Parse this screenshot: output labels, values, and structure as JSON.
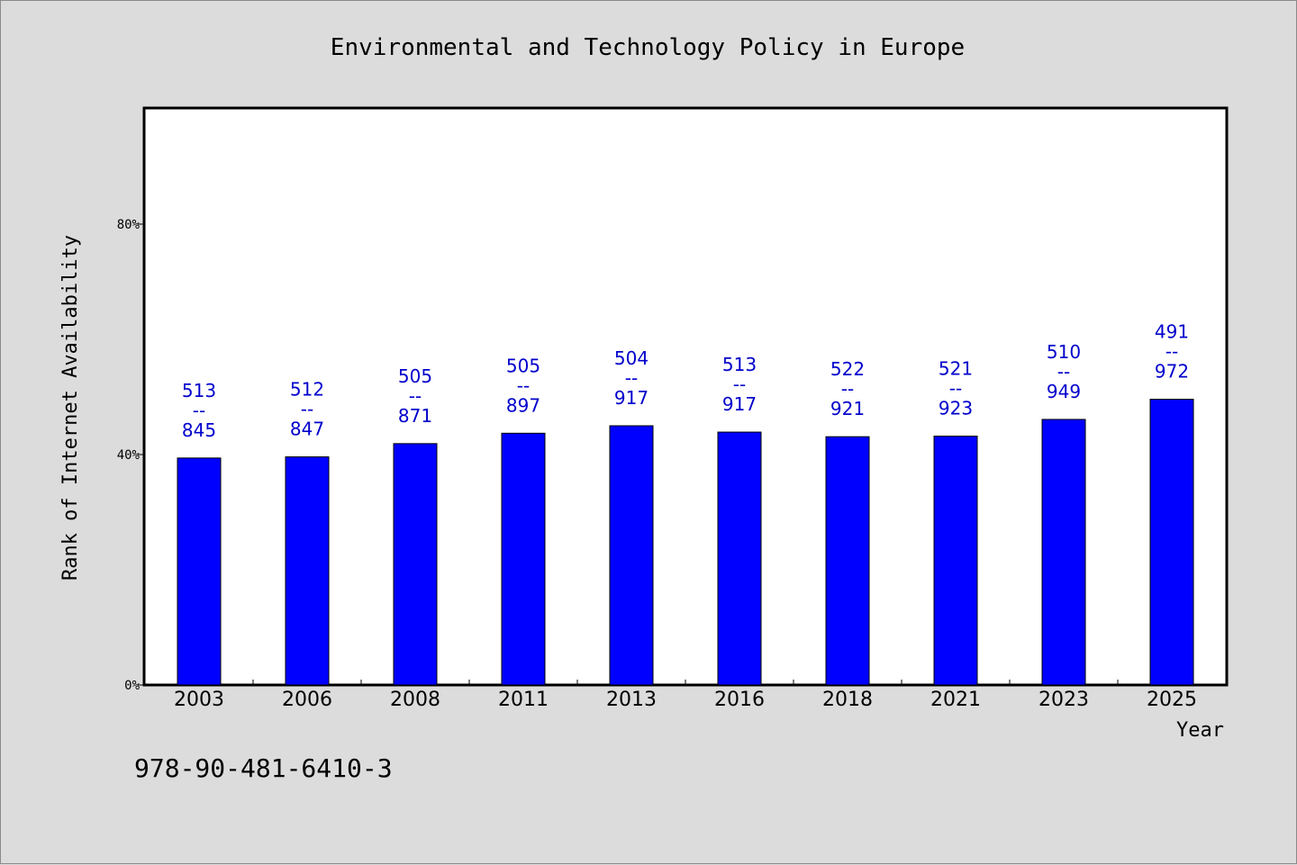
{
  "chart_data": {
    "type": "bar",
    "title": "Environmental and Technology Policy in Europe",
    "xlabel": "Year",
    "ylabel": "Rank of Internet Availability",
    "categories": [
      "2003",
      "2006",
      "2008",
      "2011",
      "2013",
      "2016",
      "2018",
      "2021",
      "2023",
      "2025"
    ],
    "values": [
      39.4,
      39.6,
      41.9,
      43.7,
      45.0,
      43.9,
      43.1,
      43.2,
      46.1,
      49.6
    ],
    "data_labels": [
      {
        "rank": "513",
        "sep": "--",
        "total": "845"
      },
      {
        "rank": "512",
        "sep": "--",
        "total": "847"
      },
      {
        "rank": "505",
        "sep": "--",
        "total": "871"
      },
      {
        "rank": "505",
        "sep": "--",
        "total": "897"
      },
      {
        "rank": "504",
        "sep": "--",
        "total": "917"
      },
      {
        "rank": "513",
        "sep": "--",
        "total": "917"
      },
      {
        "rank": "522",
        "sep": "--",
        "total": "921"
      },
      {
        "rank": "521",
        "sep": "--",
        "total": "923"
      },
      {
        "rank": "510",
        "sep": "--",
        "total": "949"
      },
      {
        "rank": "491",
        "sep": "--",
        "total": "972"
      }
    ],
    "yticks": [
      {
        "value": 0,
        "label": "0%"
      },
      {
        "value": 40,
        "label": "40%"
      },
      {
        "value": 80,
        "label": "80%"
      }
    ],
    "ylim": [
      0,
      100
    ],
    "grid": false,
    "legend": "none",
    "colors": {
      "bar": "#0000ff",
      "label": "#0000cc",
      "axis": "#000000",
      "plot_bg": "#ffffff",
      "page_bg": "#dcdcdc"
    }
  },
  "footer": {
    "isbn": "978-90-481-6410-3"
  }
}
